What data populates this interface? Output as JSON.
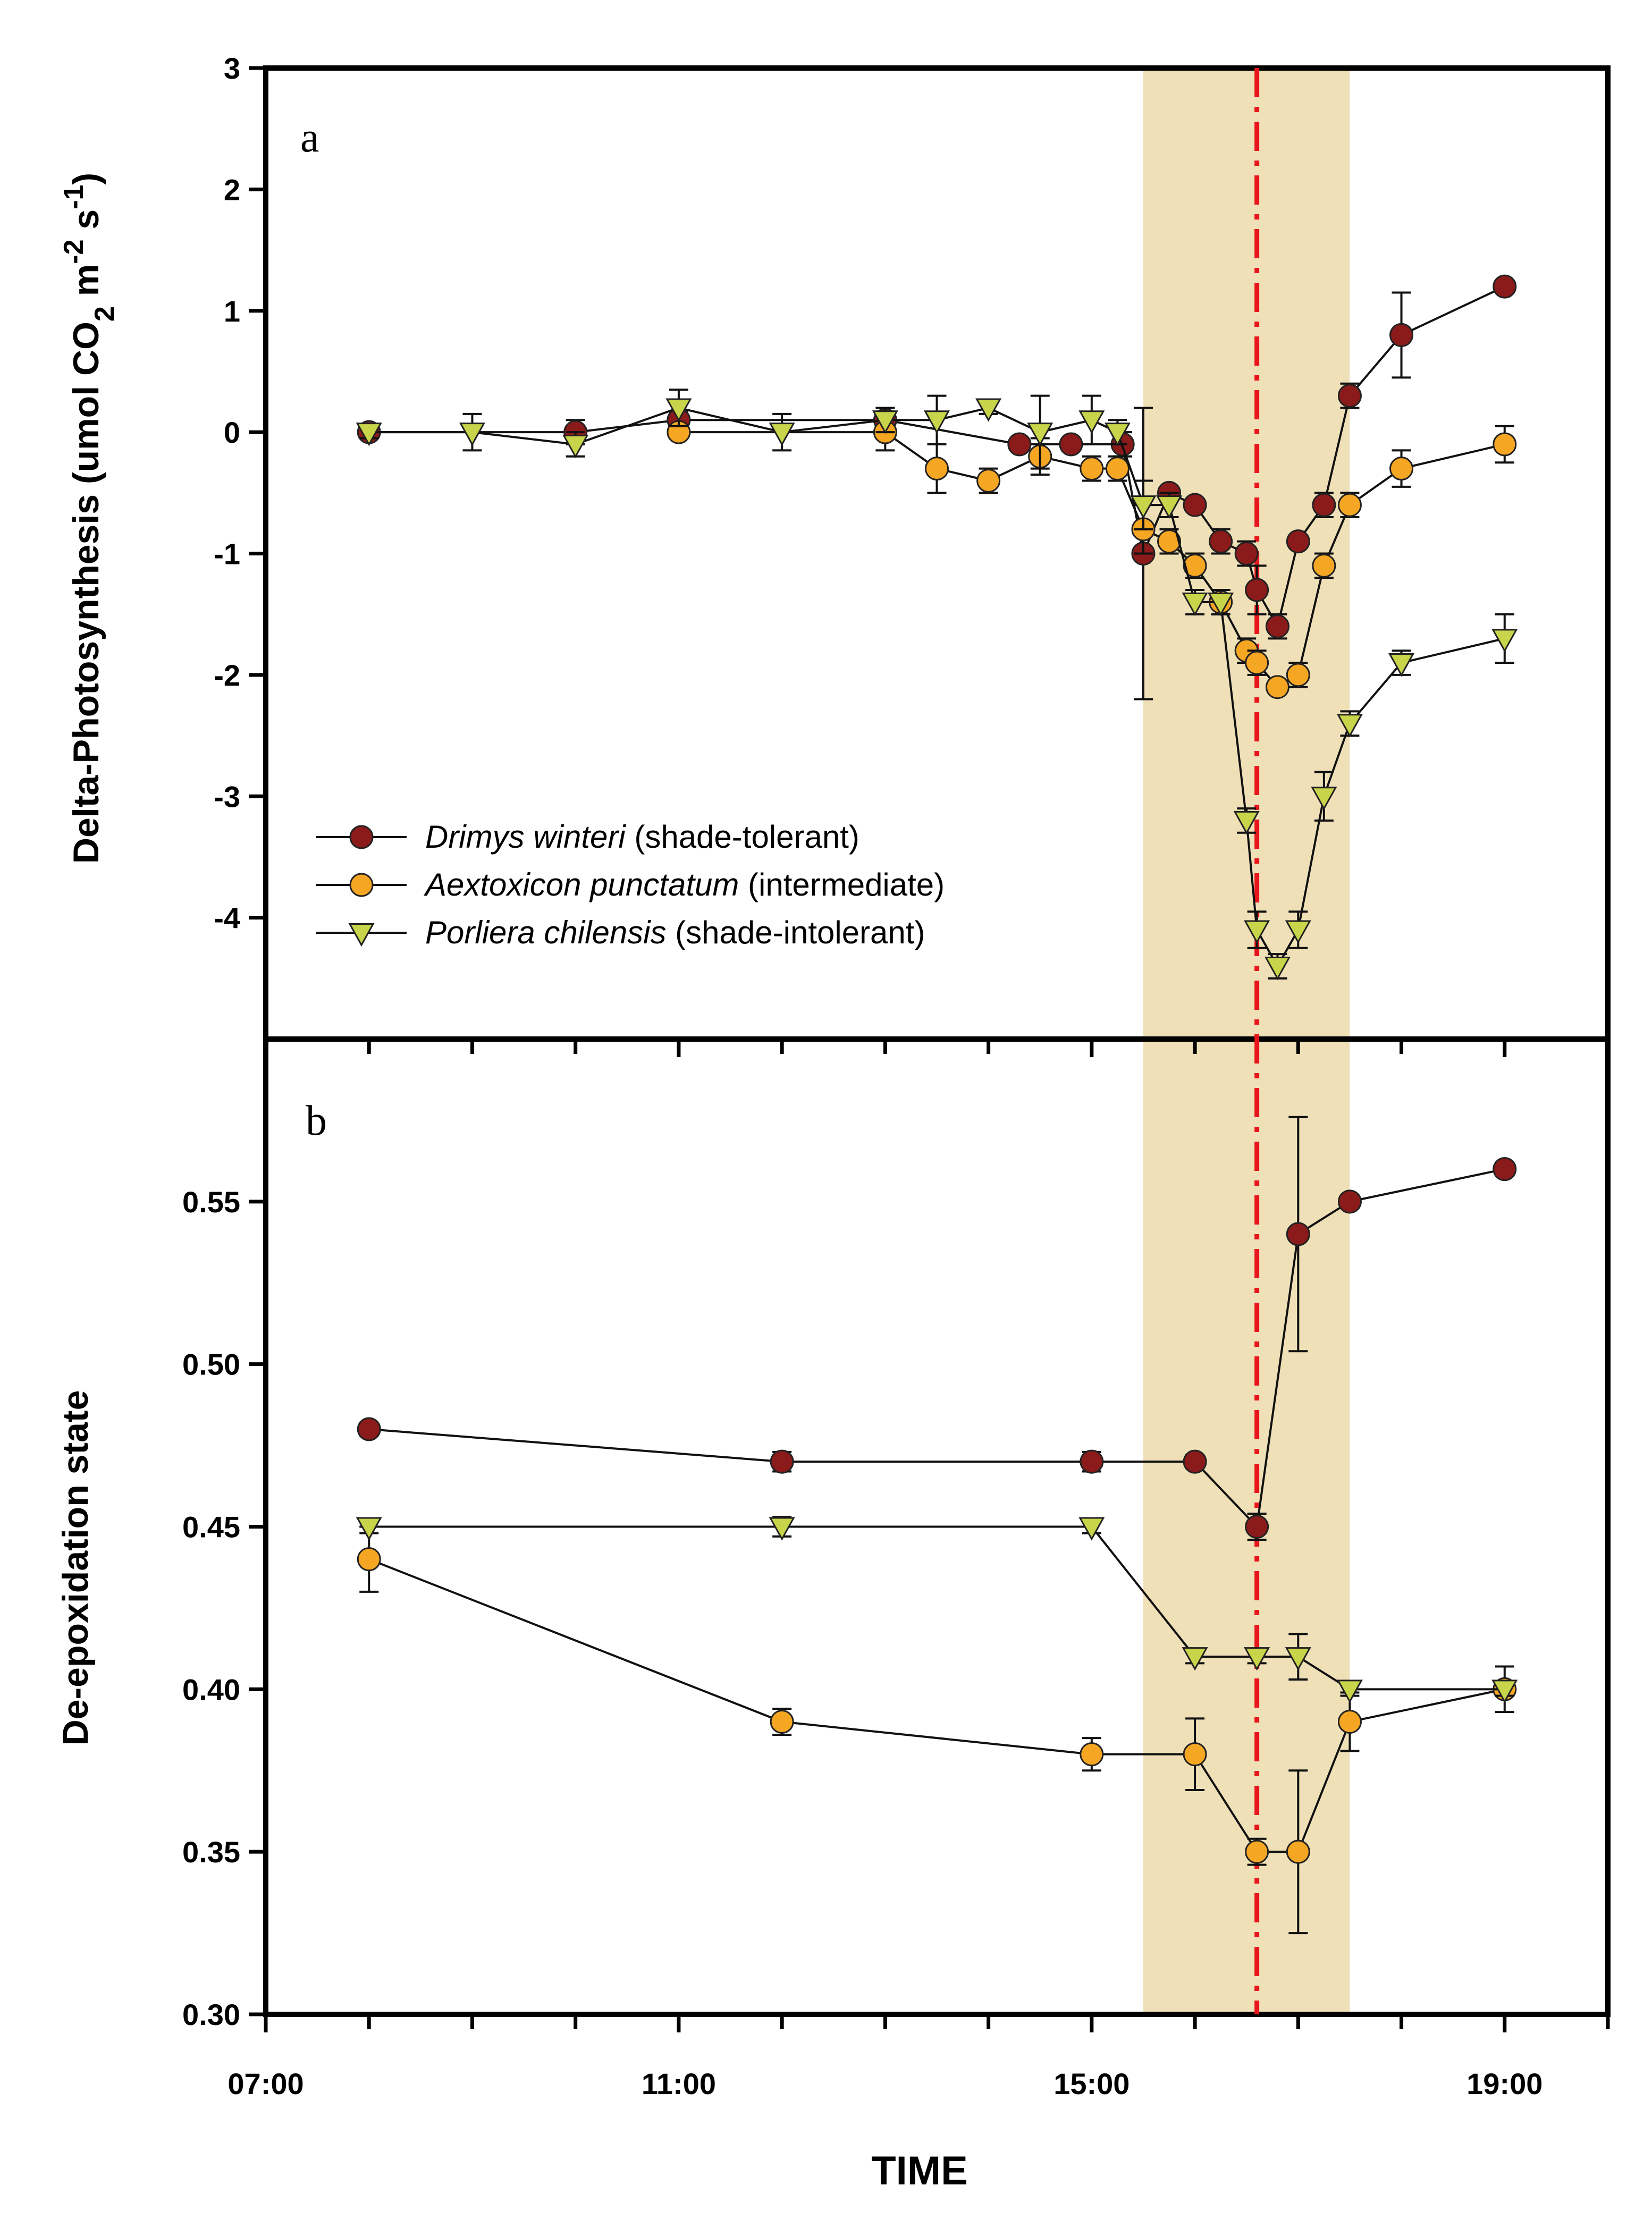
{
  "chart_data": {
    "type": "line",
    "xlabel": "TIME",
    "x_ticks": [
      "07:00",
      "11:00",
      "15:00",
      "19:00"
    ],
    "x_range_hours": [
      7,
      20
    ],
    "shade_band_hours": [
      15.5,
      17.5
    ],
    "event_line_hours": 16.6,
    "colors": {
      "drimys": "#8B1A1A",
      "aextoxicon": "#F5A623",
      "porliera": "#C8D44A",
      "shade": "#EFE0B8",
      "event": "#E8161C"
    },
    "legend": [
      {
        "key": "drimys",
        "italic": "Drimys winteri",
        "rest": " (shade-tolerant)"
      },
      {
        "key": "aextoxicon",
        "italic": "Aextoxicon punctatum",
        "rest": " (intermediate)"
      },
      {
        "key": "porliera",
        "italic": "Porliera chilensis",
        "rest": " (shade-intolerant)"
      }
    ],
    "panels": [
      {
        "id": "a",
        "letter": "a",
        "ylabel": "Delta-Photosynthesis (umol CO2 m-2 s-1)",
        "ylim": [
          -5,
          3
        ],
        "y_ticks": [
          3,
          2,
          1,
          0,
          -1,
          -2,
          -3,
          -4
        ],
        "series": [
          {
            "key": "drimys",
            "marker": "circle",
            "points": [
              [
                8,
                0,
                0.03
              ],
              [
                10,
                0,
                0.1
              ],
              [
                11,
                0.1,
                0.07
              ],
              [
                13,
                0.1,
                0.07
              ],
              [
                14.3,
                -0.1,
                0.05
              ],
              [
                14.8,
                -0.1,
                0.05
              ],
              [
                15.3,
                -0.1,
                0.1
              ],
              [
                15.5,
                -1.0,
                1.2
              ],
              [
                15.75,
                -0.5,
                0.05
              ],
              [
                16,
                -0.6,
                0.05
              ],
              [
                16.25,
                -0.9,
                0.1
              ],
              [
                16.5,
                -1.0,
                0.1
              ],
              [
                16.6,
                -1.3,
                0.2
              ],
              [
                16.8,
                -1.6,
                0.1
              ],
              [
                17,
                -0.9,
                0.05
              ],
              [
                17.25,
                -0.6,
                0.1
              ],
              [
                17.5,
                0.3,
                0.1
              ],
              [
                18,
                0.8,
                0.35
              ],
              [
                19,
                1.2,
                0.05
              ]
            ]
          },
          {
            "key": "aextoxicon",
            "marker": "circle",
            "points": [
              [
                11,
                0.0,
                0.05
              ],
              [
                13.0,
                0.0,
                0.15
              ],
              [
                13.5,
                -0.3,
                0.2
              ],
              [
                14,
                -0.4,
                0.1
              ],
              [
                14.5,
                -0.2,
                0.15
              ],
              [
                15,
                -0.3,
                0.1
              ],
              [
                15.25,
                -0.3,
                0.1
              ],
              [
                15.5,
                -0.8,
                0.2
              ],
              [
                15.75,
                -0.9,
                0.1
              ],
              [
                16,
                -1.1,
                0.1
              ],
              [
                16.25,
                -1.4,
                0.1
              ],
              [
                16.5,
                -1.8,
                0.1
              ],
              [
                16.6,
                -1.9,
                0.1
              ],
              [
                16.8,
                -2.1,
                0.05
              ],
              [
                17,
                -2.0,
                0.1
              ],
              [
                17.25,
                -1.1,
                0.1
              ],
              [
                17.5,
                -0.6,
                0.1
              ],
              [
                18,
                -0.3,
                0.15
              ],
              [
                19,
                -0.1,
                0.15
              ]
            ]
          },
          {
            "key": "porliera",
            "marker": "triangle",
            "points": [
              [
                8,
                0.0,
                0.05
              ],
              [
                9,
                0.0,
                0.15
              ],
              [
                10,
                -0.1,
                0.1
              ],
              [
                11,
                0.2,
                0.15
              ],
              [
                12,
                0.0,
                0.15
              ],
              [
                13,
                0.1,
                0.1
              ],
              [
                13.5,
                0.1,
                0.2
              ],
              [
                14,
                0.2,
                0.05
              ],
              [
                14.5,
                0.0,
                0.3
              ],
              [
                15,
                0.1,
                0.2
              ],
              [
                15.25,
                0.0,
                0.1
              ],
              [
                15.5,
                -0.6,
                0.2
              ],
              [
                15.75,
                -0.6,
                0.1
              ],
              [
                16,
                -1.4,
                0.1
              ],
              [
                16.25,
                -1.4,
                0.1
              ],
              [
                16.5,
                -3.2,
                0.1
              ],
              [
                16.6,
                -4.1,
                0.15
              ],
              [
                16.8,
                -4.4,
                0.1
              ],
              [
                17,
                -4.1,
                0.15
              ],
              [
                17.25,
                -3.0,
                0.2
              ],
              [
                17.5,
                -2.4,
                0.1
              ],
              [
                18,
                -1.9,
                0.1
              ],
              [
                19,
                -1.7,
                0.2
              ]
            ]
          }
        ]
      },
      {
        "id": "b",
        "letter": "b",
        "ylabel": "De-epoxidation state",
        "ylim": [
          0.3,
          0.6
        ],
        "y_ticks": [
          0.3,
          0.35,
          0.4,
          0.45,
          0.5,
          0.55
        ],
        "y_tick_labels": [
          "0.30",
          "0.35",
          "0.40",
          "0.45",
          "0.50",
          "0.55"
        ],
        "series": [
          {
            "key": "drimys",
            "marker": "circle",
            "points": [
              [
                8,
                0.48,
                0.002
              ],
              [
                12,
                0.47,
                0.003
              ],
              [
                15,
                0.47,
                0.003
              ],
              [
                16,
                0.47,
                0.002
              ],
              [
                16.6,
                0.45,
                0.004
              ],
              [
                17,
                0.54,
                0.036
              ],
              [
                17.5,
                0.55,
                0.002
              ],
              [
                19,
                0.56,
                0.002
              ]
            ]
          },
          {
            "key": "aextoxicon",
            "marker": "circle",
            "points": [
              [
                8,
                0.44,
                0.01
              ],
              [
                12,
                0.39,
                0.004
              ],
              [
                15,
                0.38,
                0.005
              ],
              [
                16,
                0.38,
                0.011
              ],
              [
                16.6,
                0.35,
                0.004
              ],
              [
                17,
                0.35,
                0.025
              ],
              [
                17.5,
                0.39,
                0.009
              ],
              [
                19,
                0.4,
                0.007
              ]
            ]
          },
          {
            "key": "porliera",
            "marker": "triangle",
            "points": [
              [
                8,
                0.45,
                0.002
              ],
              [
                12,
                0.45,
                0.003
              ],
              [
                15,
                0.45,
                0.002
              ],
              [
                16,
                0.41,
                0.002
              ],
              [
                16.6,
                0.41,
                0.002
              ],
              [
                17,
                0.41,
                0.007
              ],
              [
                17.5,
                0.4,
                0.002
              ],
              [
                19,
                0.4,
                0.002
              ]
            ]
          }
        ]
      }
    ]
  }
}
